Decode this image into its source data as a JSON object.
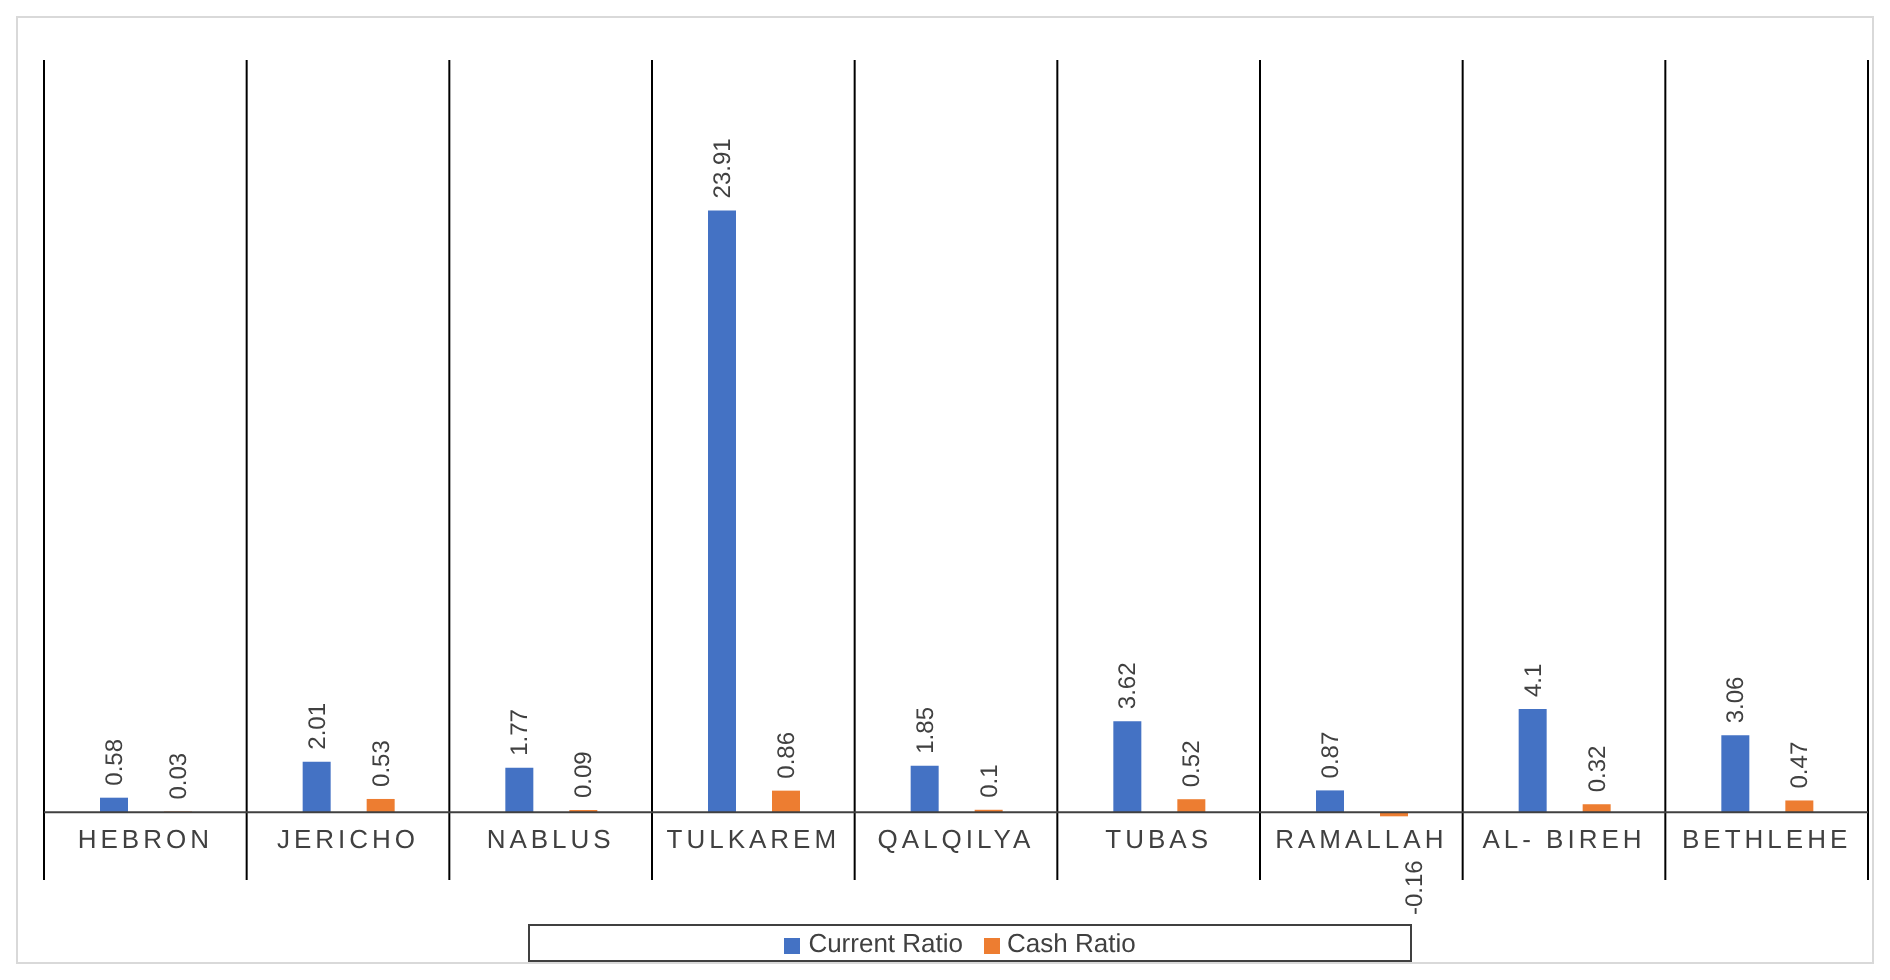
{
  "chart_data": {
    "type": "bar",
    "categories": [
      "HEBRON",
      "JERICHO",
      "NABLUS",
      "TULKAREM",
      "QALQILYA",
      "TUBAS",
      "RAMALLAH",
      "AL- BIREH",
      "BETHLEHE"
    ],
    "series": [
      {
        "name": "Current Ratio",
        "color": "#4472c4",
        "values": [
          0.58,
          2.01,
          1.77,
          23.91,
          1.85,
          3.62,
          0.87,
          4.1,
          3.06
        ]
      },
      {
        "name": "Cash Ratio",
        "color": "#ed7d31",
        "values": [
          0.03,
          0.53,
          0.09,
          0.86,
          0.1,
          0.52,
          -0.16,
          0.32,
          0.47
        ]
      }
    ],
    "data_labels": true,
    "grid": "x",
    "legend": "bottom"
  }
}
